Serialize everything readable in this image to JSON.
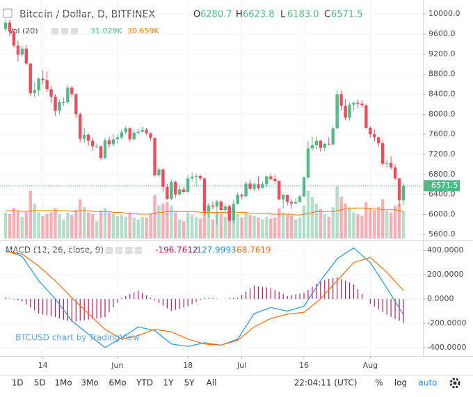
{
  "chart_data": {
    "type": "candlestick",
    "title": "Bitcoin / Dollar, D, BITFINEX",
    "ohlc_labels": [
      "O",
      "H",
      "L",
      "C"
    ],
    "value_labels": {
      "open": "6280.7",
      "high": "6623.8",
      "low": "6183.0",
      "close": "6571.5",
      "volume": "31.029K",
      "volume_ma": "30.659K"
    },
    "up_color": "#53b987",
    "down_color": "#eb4d5c",
    "open": [
      9700,
      9830,
      9650,
      9370,
      9190,
      9310,
      9010,
      8420,
      8480,
      8710,
      8680,
      8500,
      8350,
      8070,
      8240,
      8240,
      8530,
      8400,
      8000,
      7510,
      7590,
      7470,
      7360,
      7360,
      7130,
      7480,
      7400,
      7500,
      7540,
      7640,
      7720,
      7500,
      7630,
      7650,
      7690,
      7620,
      7530,
      6780,
      6900,
      6550,
      6310,
      6650,
      6400,
      6500,
      6450,
      6720,
      6750,
      6770,
      6720,
      6060,
      6180,
      6160,
      6260,
      6090,
      6160,
      5880,
      6210,
      6390,
      6360,
      6620,
      6510,
      6600,
      6530,
      6600,
      6760,
      6710,
      6670,
      6300,
      6390,
      6250,
      6220,
      6250,
      6360,
      6740,
      7320,
      7380,
      7470,
      7330,
      7410,
      7400,
      7720,
      8400,
      8170,
      7930,
      8190,
      8230,
      8210,
      8180,
      7730,
      7600,
      7540,
      7420,
      7010,
      7030,
      6940,
      6720,
      6280.7
    ],
    "high": [
      9900,
      9890,
      9700,
      9470,
      9370,
      9380,
      9030,
      8630,
      8740,
      8880,
      8850,
      8570,
      8400,
      8290,
      8330,
      8590,
      8570,
      8420,
      8030,
      7730,
      7620,
      7530,
      7420,
      7380,
      7530,
      7550,
      7600,
      7600,
      7690,
      7760,
      7740,
      7680,
      7710,
      7760,
      7730,
      7640,
      7540,
      6940,
      6910,
      6610,
      6700,
      6670,
      6560,
      6560,
      6790,
      6830,
      6810,
      6790,
      6730,
      6230,
      6260,
      6290,
      6280,
      6220,
      6190,
      6290,
      6440,
      6420,
      6660,
      6690,
      6640,
      6760,
      6650,
      6780,
      6820,
      6790,
      6680,
      6400,
      6400,
      6300,
      6320,
      6390,
      6760,
      7460,
      7550,
      7550,
      7490,
      7420,
      7540,
      7760,
      8470,
      8480,
      8300,
      8240,
      8250,
      8290,
      8280,
      8200,
      7760,
      7690,
      7550,
      7480,
      7090,
      7160,
      7000,
      6730,
      6623.8
    ],
    "low": [
      9650,
      9560,
      9330,
      9050,
      9150,
      8980,
      8360,
      8340,
      8360,
      8600,
      8450,
      8220,
      7970,
      8000,
      8170,
      8200,
      8330,
      7930,
      7440,
      7430,
      7370,
      7270,
      7320,
      7080,
      7100,
      7330,
      7360,
      7410,
      7500,
      7600,
      7460,
      7480,
      7590,
      7640,
      7590,
      7480,
      6760,
      6760,
      6450,
      6290,
      6280,
      6330,
      6380,
      6420,
      6420,
      6670,
      6560,
      6680,
      5980,
      5940,
      6100,
      5790,
      6080,
      6030,
      5850,
      5830,
      6200,
      6300,
      6340,
      6490,
      6460,
      6490,
      6520,
      6550,
      6680,
      6620,
      6290,
      6120,
      6180,
      6120,
      6200,
      6240,
      6340,
      6700,
      7270,
      7300,
      7250,
      7260,
      7380,
      7380,
      7700,
      8070,
      7880,
      7870,
      8080,
      8120,
      8130,
      7710,
      7530,
      7460,
      7350,
      6980,
      6930,
      6900,
      6680,
      6150,
      6183.0
    ],
    "close": [
      9830,
      9650,
      9370,
      9190,
      9310,
      9010,
      8420,
      8480,
      8710,
      8680,
      8500,
      8350,
      8070,
      8240,
      8240,
      8530,
      8400,
      8000,
      7510,
      7590,
      7470,
      7360,
      7360,
      7130,
      7480,
      7400,
      7500,
      7540,
      7640,
      7720,
      7500,
      7630,
      7650,
      7690,
      7620,
      7530,
      6780,
      6900,
      6550,
      6310,
      6650,
      6400,
      6500,
      6450,
      6720,
      6750,
      6770,
      6720,
      6060,
      6180,
      6160,
      6260,
      6090,
      6160,
      5880,
      6210,
      6390,
      6360,
      6620,
      6510,
      6600,
      6530,
      6600,
      6760,
      6710,
      6670,
      6300,
      6390,
      6250,
      6220,
      6250,
      6360,
      6740,
      7320,
      7380,
      7470,
      7330,
      7410,
      7400,
      7720,
      8400,
      8170,
      7930,
      8190,
      8230,
      8210,
      8180,
      7730,
      7600,
      7540,
      7420,
      7010,
      7030,
      6940,
      6720,
      6280.7,
      6571.5
    ],
    "ylim": [
      5520,
      10280
    ],
    "yticks": [
      {
        "value": 5600,
        "label": "5600.0"
      },
      {
        "value": 6000,
        "label": "6000.0"
      },
      {
        "value": 6400,
        "label": "6400.0"
      },
      {
        "value": 6800,
        "label": "6800.0"
      },
      {
        "value": 7200,
        "label": "7200.0"
      },
      {
        "value": 7600,
        "label": "7600.0"
      },
      {
        "value": 8000,
        "label": "8000.0"
      },
      {
        "value": 8400,
        "label": "8400.0"
      },
      {
        "value": 8800,
        "label": "8800.0"
      },
      {
        "value": 9200,
        "label": "9200.0"
      },
      {
        "value": 9600,
        "label": "9600.0"
      },
      {
        "value": 10000,
        "label": "10000.0"
      }
    ],
    "xticks": [
      {
        "value": 9,
        "label": "14"
      },
      {
        "value": 27,
        "label": "Jun"
      },
      {
        "value": 44,
        "label": "18"
      },
      {
        "value": 57,
        "label": "Jul"
      },
      {
        "value": 72,
        "label": "16"
      },
      {
        "value": 88,
        "label": "Aug"
      }
    ],
    "grid": true,
    "volume": {
      "label": "Vol (20)",
      "ma_color": "#f57c00",
      "values": [
        30,
        28,
        35,
        32,
        25,
        30,
        55,
        40,
        30,
        26,
        28,
        30,
        35,
        28,
        22,
        30,
        27,
        33,
        45,
        36,
        30,
        28,
        20,
        32,
        35,
        30,
        28,
        26,
        27,
        25,
        30,
        24,
        22,
        25,
        24,
        28,
        50,
        38,
        40,
        42,
        38,
        30,
        22,
        20,
        30,
        27,
        25,
        23,
        40,
        35,
        22,
        30,
        28,
        25,
        38,
        35,
        28,
        24,
        30,
        27,
        26,
        24,
        22,
        25,
        23,
        24,
        35,
        30,
        28,
        27,
        22,
        24,
        38,
        55,
        48,
        40,
        34,
        28,
        25,
        36,
        60,
        48,
        40,
        36,
        30,
        28,
        26,
        42,
        35,
        33,
        36,
        45,
        32,
        30,
        38,
        40,
        31.029
      ],
      "ma_values": [
        32,
        32,
        32,
        32,
        31,
        31,
        32,
        32,
        32,
        32,
        32,
        32,
        32,
        32,
        32,
        32,
        31,
        31,
        32,
        32,
        32,
        31,
        31,
        31,
        31,
        31,
        30,
        30,
        30,
        29,
        29,
        29,
        28,
        28,
        28,
        28,
        29,
        30,
        30,
        31,
        31,
        31,
        31,
        31,
        31,
        31,
        31,
        30,
        30,
        30,
        30,
        30,
        30,
        30,
        30,
        31,
        30,
        30,
        30,
        29,
        29,
        29,
        29,
        29,
        28,
        28,
        28,
        28,
        28,
        28,
        27,
        27,
        28,
        29,
        30,
        31,
        31,
        31,
        31,
        31,
        32,
        33,
        34,
        34,
        35,
        35,
        35,
        35,
        34,
        34,
        34,
        33,
        33,
        33,
        33,
        32,
        30.659
      ]
    },
    "macd": {
      "label": "MACD (12, 26, close, 9)",
      "macd_color": "#2196f3",
      "signal_color": "#ff6d00",
      "histogram_color": "#c2185b",
      "ylim": [
        -469,
        469
      ],
      "yticks": [
        {
          "value": -400,
          "label": "-400.0000"
        },
        {
          "value": -200,
          "label": "-200.0000"
        },
        {
          "value": 0,
          "label": "0.0000"
        },
        {
          "value": 200,
          "label": "200.0000"
        },
        {
          "value": 400,
          "label": "400.0000"
        }
      ],
      "histogram": [
        10,
        3,
        -5,
        -12,
        -20,
        -45,
        -70,
        -95,
        -120,
        -127,
        -135,
        -142,
        -150,
        -160,
        -170,
        -180,
        -190,
        -185,
        -180,
        -175,
        -170,
        -165,
        -160,
        -155,
        -150,
        -110,
        -70,
        -30,
        10,
        25,
        40,
        55,
        70,
        50,
        30,
        10,
        -10,
        -33,
        -55,
        -78,
        -100,
        -90,
        -80,
        -70,
        -60,
        -43,
        -25,
        -8,
        10,
        8,
        5,
        3,
        0,
        2,
        5,
        7,
        10,
        35,
        60,
        85,
        110,
        105,
        100,
        95,
        90,
        73,
        58,
        41,
        25,
        31,
        38,
        44,
        50,
        75,
        100,
        126,
        150,
        157,
        165,
        172,
        180,
        165,
        150,
        135,
        120,
        80,
        40,
        0,
        -40,
        -62,
        -85,
        -107,
        -130,
        -147,
        -164,
        -180,
        -196.7612
      ],
      "macd": [
        400,
        388,
        375,
        363,
        350,
        300,
        250,
        200,
        150,
        113,
        75,
        38,
        0,
        -45,
        -90,
        -135,
        -180,
        -208,
        -235,
        -263,
        -290,
        -318,
        -345,
        -373,
        -400,
        -380,
        -360,
        -340,
        -320,
        -298,
        -275,
        -253,
        -230,
        -238,
        -245,
        -253,
        -260,
        -288,
        -315,
        -343,
        -370,
        -375,
        -380,
        -385,
        -390,
        -383,
        -375,
        -368,
        -360,
        -365,
        -370,
        -375,
        -380,
        -368,
        -355,
        -343,
        -330,
        -278,
        -225,
        -173,
        -120,
        -108,
        -95,
        -83,
        -70,
        -78,
        -85,
        -93,
        -100,
        -90,
        -80,
        -70,
        -60,
        -8,
        45,
        98,
        150,
        195,
        240,
        285,
        330,
        353,
        375,
        398,
        420,
        390,
        360,
        330,
        300,
        248,
        195,
        143,
        90,
        35,
        -20,
        -74,
        -127.9993
      ],
      "signal": [
        390,
        385,
        380,
        375,
        370,
        345,
        320,
        295,
        270,
        240,
        210,
        180,
        150,
        115,
        80,
        45,
        10,
        -23,
        -55,
        -88,
        -120,
        -153,
        -185,
        -218,
        -250,
        -270,
        -290,
        -310,
        -330,
        -323,
        -315,
        -308,
        -300,
        -288,
        -275,
        -263,
        -250,
        -255,
        -260,
        -265,
        -270,
        -285,
        -300,
        -315,
        -330,
        -340,
        -350,
        -360,
        -370,
        -373,
        -375,
        -378,
        -380,
        -370,
        -360,
        -350,
        -340,
        -313,
        -285,
        -258,
        -230,
        -213,
        -195,
        -178,
        -160,
        -151,
        -143,
        -134,
        -125,
        -121,
        -118,
        -114,
        -110,
        -83,
        -55,
        -28,
        0,
        38,
        75,
        113,
        150,
        188,
        225,
        263,
        300,
        310,
        320,
        330,
        340,
        310,
        280,
        250,
        220,
        182,
        144,
        106,
        68.7619
      ]
    },
    "watermark": "BTCUSD chart by TradingView",
    "toolbar": {
      "ranges": [
        "1D",
        "5D",
        "1Mo",
        "3Mo",
        "6Mo",
        "YTD",
        "1Y",
        "5Y",
        "All"
      ],
      "time": "22:04:11 (UTC)",
      "options": [
        "%",
        "log",
        "auto"
      ]
    }
  }
}
